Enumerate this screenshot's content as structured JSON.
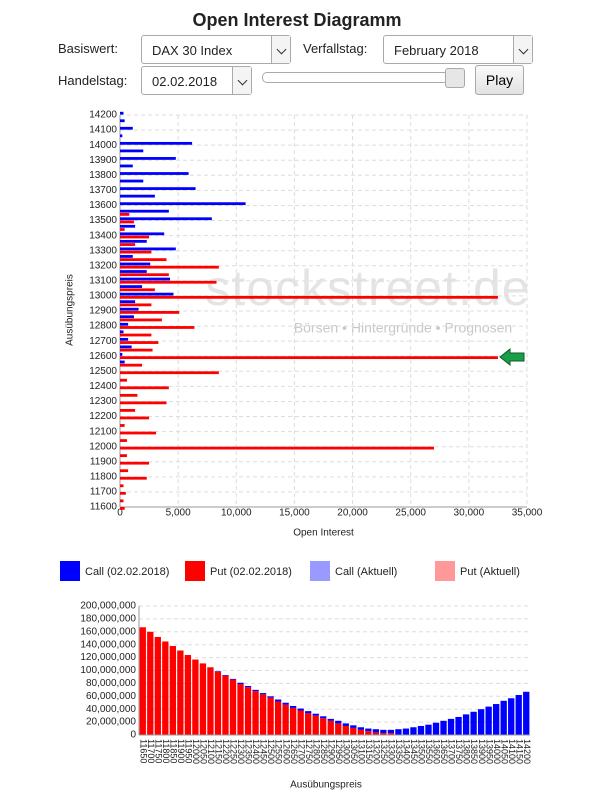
{
  "title": "Open Interest Diagramm",
  "controls": {
    "basiswert_label": "Basiswert:",
    "basiswert": "DAX 30 Index",
    "verfallstag_label": "Verfallstag:",
    "verfallstag": "February 2018",
    "handelstag_label": "Handelstag:",
    "handelstag": "02.02.2018",
    "play": "Play"
  },
  "chart_data": [
    {
      "type": "bar",
      "orientation": "horizontal",
      "xlabel": "Open Interest",
      "ylabel": "Ausübungspreis",
      "watermark": {
        "brand": "stockstreet.de",
        "tagline": "Börsen • Hintergründe • Prognosen"
      },
      "categories": [
        11600,
        null,
        11700,
        null,
        11800,
        null,
        11900,
        null,
        12000,
        null,
        12100,
        null,
        12200,
        null,
        12300,
        null,
        12400,
        null,
        12500,
        null,
        12600,
        null,
        12700,
        null,
        12800,
        null,
        12900,
        null,
        13000,
        null,
        13100,
        null,
        13200,
        null,
        13300,
        null,
        13400,
        null,
        13500,
        null,
        13600,
        null,
        13700,
        null,
        13800,
        null,
        13900,
        null,
        14000,
        null,
        14100,
        null,
        14200
      ],
      "series": [
        {
          "name": "Call (02.02.2018)",
          "color": "#0000ff",
          "values": [
            0,
            0,
            0,
            0,
            0,
            0,
            0,
            0,
            0,
            0,
            0,
            0,
            0,
            0,
            0,
            0,
            0,
            0,
            0,
            400,
            200,
            1000,
            700,
            300,
            700,
            1200,
            1600,
            1300,
            4600,
            1900,
            4300,
            2300,
            2600,
            1100,
            4800,
            2300,
            3800,
            1300,
            7900,
            4200,
            10800,
            3000,
            6500,
            2000,
            5900,
            1100,
            4800,
            2000,
            6200,
            200,
            1100,
            400,
            300
          ]
        },
        {
          "name": "Put (02.02.2018)",
          "color": "#ff0000",
          "values": [
            400,
            300,
            500,
            300,
            2300,
            700,
            2500,
            600,
            27000,
            600,
            3100,
            400,
            2500,
            1300,
            4000,
            1500,
            4200,
            600,
            8500,
            1900,
            32500,
            2800,
            3300,
            2700,
            6400,
            3600,
            5100,
            2700,
            32500,
            3000,
            8300,
            4200,
            8500,
            4000,
            2700,
            1300,
            2500,
            400,
            1200,
            800,
            0,
            0,
            0,
            0,
            0,
            0,
            0,
            0,
            0,
            0,
            0,
            0,
            0
          ]
        },
        {
          "name": "Call (Aktuell)",
          "color": "#9999ff",
          "values": [
            null,
            null,
            null,
            null,
            null,
            null,
            null,
            null,
            null,
            null,
            null,
            null,
            null,
            null,
            null,
            null,
            null,
            null,
            null,
            null,
            null,
            null,
            null,
            null,
            null,
            null,
            null,
            null,
            null,
            null,
            null,
            null,
            null,
            null,
            null,
            null,
            null,
            null,
            null,
            null,
            null,
            null,
            null,
            null,
            null,
            null,
            null,
            null,
            null,
            null,
            null,
            null,
            null
          ]
        },
        {
          "name": "Put (Aktuell)",
          "color": "#ff9999",
          "values": [
            null,
            null,
            null,
            null,
            null,
            null,
            null,
            null,
            null,
            null,
            null,
            null,
            null,
            null,
            null,
            null,
            null,
            null,
            null,
            null,
            null,
            null,
            null,
            null,
            null,
            null,
            null,
            null,
            null,
            null,
            null,
            null,
            null,
            null,
            null,
            null,
            null,
            null,
            null,
            null,
            null,
            null,
            null,
            null,
            null,
            null,
            null,
            null,
            null,
            null,
            null,
            null,
            null
          ]
        }
      ],
      "xlim": [
        0,
        35000
      ],
      "xticks": [
        0,
        {
          "value": 5000,
          "label": "5,000"
        },
        {
          "value": 10000,
          "label": "10,000"
        },
        {
          "value": 15000,
          "label": "15,000"
        },
        {
          "value": 20000,
          "label": "20,000"
        },
        {
          "value": 25000,
          "label": "25,000"
        },
        {
          "value": 30000,
          "label": "30,000"
        },
        {
          "value": 35000,
          "label": "35,000"
        }
      ],
      "grid": true
    },
    {
      "type": "bar",
      "stacked": true,
      "xlabel": "Ausübungspreis",
      "categories": [
        "11650",
        "11700",
        "11750",
        "11800",
        "11850",
        "11900",
        "11950",
        "12000",
        "12050",
        "12100",
        "12150",
        "12200",
        "12250",
        "12300",
        "12350",
        "12400",
        "12450",
        "12500",
        "12550",
        "12600",
        "12650",
        "12700",
        "12750",
        "12800",
        "12850",
        "12900",
        "12950",
        "13000",
        "13050",
        "13100",
        "13150",
        "13200",
        "13250",
        "13300",
        "13350",
        "13400",
        "13450",
        "13500",
        "13550",
        "13600",
        "13650",
        "13700",
        "13750",
        "13800",
        "13850",
        "13900",
        "13950",
        "14000",
        "14050",
        "14100",
        "14150",
        "14200"
      ],
      "series": [
        {
          "color": "#ff0000",
          "values": [
            167000000,
            160000000,
            152000000,
            145000000,
            138000000,
            131000000,
            124000000,
            117000000,
            111000000,
            105000000,
            98000000,
            92000000,
            86000000,
            79000000,
            74000000,
            68000000,
            63000000,
            58000000,
            52000000,
            47000000,
            42000000,
            38000000,
            34000000,
            30000000,
            26000000,
            22000000,
            18000000,
            14000000,
            11000000,
            8000000,
            6000000,
            4000000,
            3000000,
            3000000,
            0,
            0,
            0,
            0,
            0,
            0,
            0,
            0,
            0,
            0,
            0,
            0,
            0,
            0,
            0,
            0,
            0,
            0
          ]
        },
        {
          "color": "#0000ff",
          "values": [
            0,
            0,
            0,
            0,
            0,
            0,
            0,
            0,
            0,
            0,
            1000000,
            1000000,
            1000000,
            2000000,
            2000000,
            2000000,
            2000000,
            2000000,
            3000000,
            3000000,
            3000000,
            3000000,
            3000000,
            3000000,
            3000000,
            3000000,
            4000000,
            4000000,
            4000000,
            4000000,
            4000000,
            5000000,
            5000000,
            5000000,
            9000000,
            10000000,
            12000000,
            14000000,
            16000000,
            19000000,
            22000000,
            25000000,
            28000000,
            32000000,
            36000000,
            40000000,
            44000000,
            48000000,
            53000000,
            57000000,
            62000000,
            67000000
          ]
        }
      ],
      "ylim": [
        0,
        200000000
      ],
      "yticks": [
        0,
        {
          "value": 20000000,
          "label": "20,000,000"
        },
        {
          "value": 40000000,
          "label": "40,000,000"
        },
        {
          "value": 60000000,
          "label": "60,000,000"
        },
        {
          "value": 80000000,
          "label": "80,000,000"
        },
        {
          "value": 100000000,
          "label": "100,000,000"
        },
        {
          "value": 120000000,
          "label": "120,000,000"
        },
        {
          "value": 140000000,
          "label": "140,000,000"
        },
        {
          "value": 160000000,
          "label": "160,000,000"
        },
        {
          "value": 180000000,
          "label": "180,000,000"
        },
        {
          "value": 200000000,
          "label": "200,000,000"
        }
      ],
      "grid": true
    }
  ]
}
